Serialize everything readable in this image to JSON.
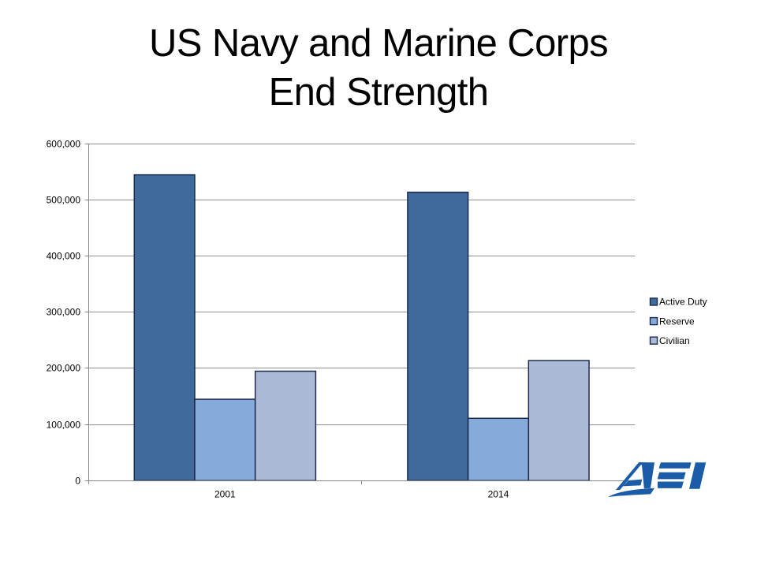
{
  "slide": {
    "background": "#FFFFFF"
  },
  "title": {
    "line1": "US Navy and Marine Corps",
    "line2": "End Strength"
  },
  "chart_data": {
    "type": "bar",
    "title": "US Navy and Marine Corps End Strength",
    "categories": [
      "2001",
      "2014"
    ],
    "series": [
      {
        "name": "Active Duty",
        "values": [
          545000,
          514000
        ],
        "fill": "#3F6A9B"
      },
      {
        "name": "Reserve",
        "values": [
          145000,
          111000
        ],
        "fill": "#86ABDA"
      },
      {
        "name": "Civilian",
        "values": [
          195000,
          214000
        ],
        "fill": "#ADBAD6"
      }
    ],
    "xlabel": "",
    "ylabel": "",
    "ylim": [
      0,
      600000
    ],
    "ytick_step": 100000,
    "ytick_labels": [
      "0",
      "100,000",
      "200,000",
      "300,000",
      "400,000",
      "500,000",
      "600,000"
    ],
    "grid": true,
    "legend_position": "right",
    "colors": {
      "bar_border": "#1B2B4E",
      "gridline": "#8E8E8E",
      "axis": "#878787",
      "tick_label": "#000000",
      "legend_text": "#000000"
    }
  },
  "logo": {
    "text": "AEI",
    "color": "#1B5CA8"
  }
}
